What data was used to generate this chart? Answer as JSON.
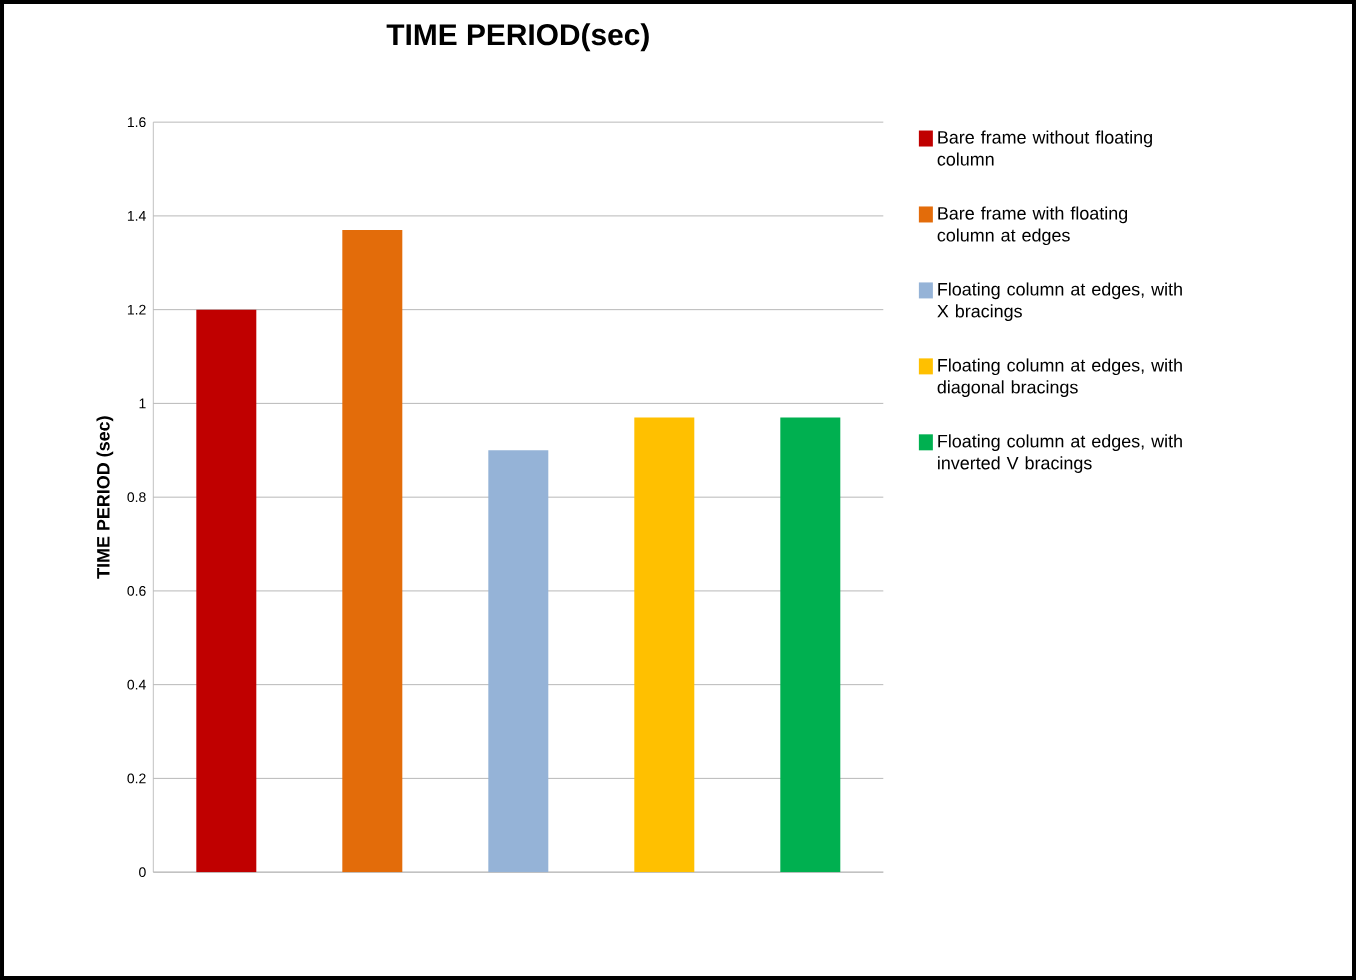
{
  "chart_data": {
    "type": "bar",
    "title": "TIME PERIOD(sec)",
    "ylabel": "TIME PERIOD (sec)",
    "categories": [
      null,
      null,
      null,
      null,
      null
    ],
    "series": [
      {
        "name": "Bare frame without floating column",
        "color": "#c00000",
        "values": [
          1.2,
          null,
          null,
          null,
          null
        ]
      },
      {
        "name": "Bare frame with floating column at edges",
        "color": "#e36c0a",
        "values": [
          null,
          1.37,
          null,
          null,
          null
        ]
      },
      {
        "name": "Floating column at edges, with X bracings",
        "color": "#95b3d7",
        "values": [
          null,
          null,
          0.9,
          null,
          null
        ]
      },
      {
        "name": "Floating column at edges, with diagonal bracings",
        "color": "#ffc000",
        "values": [
          null,
          null,
          null,
          0.97,
          null
        ]
      },
      {
        "name": "Floating column at edges, with inverted V bracings",
        "color": "#00b050",
        "values": [
          null,
          null,
          null,
          null,
          0.97
        ]
      }
    ],
    "ylim": [
      0,
      1.6
    ],
    "yticks": [
      0,
      0.2,
      0.4,
      0.6,
      0.8,
      1,
      1.2,
      1.4,
      1.6
    ],
    "grid": "y",
    "legend": "right"
  }
}
